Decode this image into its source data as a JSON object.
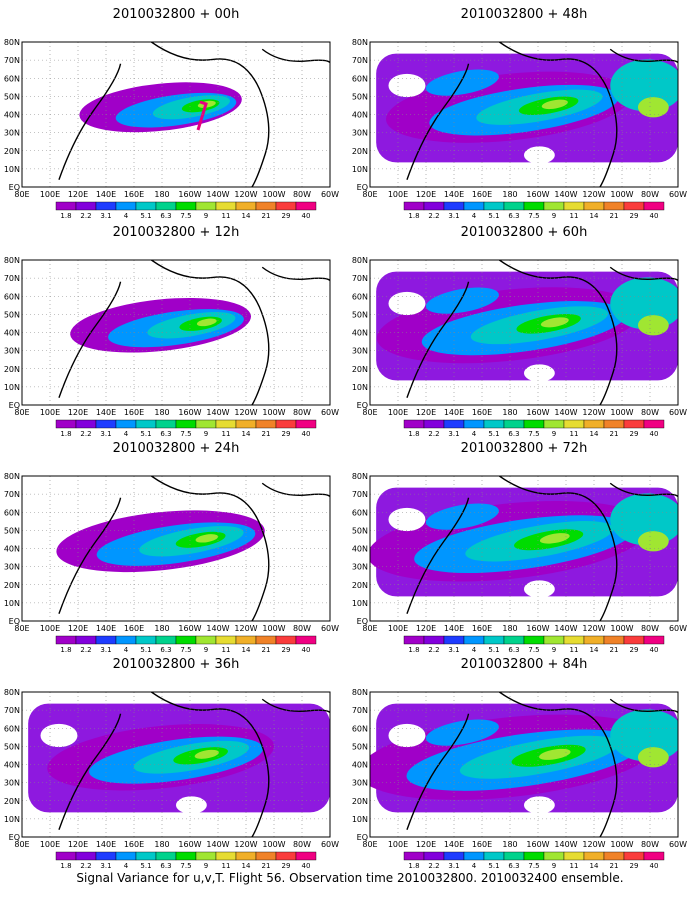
{
  "caption": "Signal Variance for u,v,T. Flight 56. Observation time 2010032800. 2010032400 ensemble.",
  "lat_labels": [
    "EQ",
    "10N",
    "20N",
    "30N",
    "40N",
    "50N",
    "60N",
    "70N",
    "80N"
  ],
  "lon_labels": [
    "80E",
    "100E",
    "120E",
    "140E",
    "160E",
    "180",
    "160W",
    "140W",
    "120W",
    "100W",
    "80W",
    "60W"
  ],
  "colorbar": {
    "labels": [
      "1.8",
      "2.2",
      "3.1",
      "4",
      "5.1",
      "6.3",
      "7.5",
      "9",
      "11",
      "14",
      "21",
      "29",
      "40"
    ],
    "colors": [
      "#a000c8",
      "#8200dc",
      "#1e3cff",
      "#0096ff",
      "#00c8c8",
      "#00d28c",
      "#00dc00",
      "#a0e632",
      "#e6dc32",
      "#f0af28",
      "#f08228",
      "#fa3c3c",
      "#f00082"
    ]
  },
  "panels": [
    {
      "title": "2010032800  + 00h",
      "intensity": 0.15
    },
    {
      "title": "2010032800  + 48h",
      "intensity": 0.6
    },
    {
      "title": "2010032800  + 12h",
      "intensity": 0.25
    },
    {
      "title": "2010032800  + 60h",
      "intensity": 0.7
    },
    {
      "title": "2010032800  + 24h",
      "intensity": 0.4
    },
    {
      "title": "2010032800  + 72h",
      "intensity": 0.8
    },
    {
      "title": "2010032800  + 36h",
      "intensity": 0.5
    },
    {
      "title": "2010032800  + 84h",
      "intensity": 0.9
    }
  ]
}
